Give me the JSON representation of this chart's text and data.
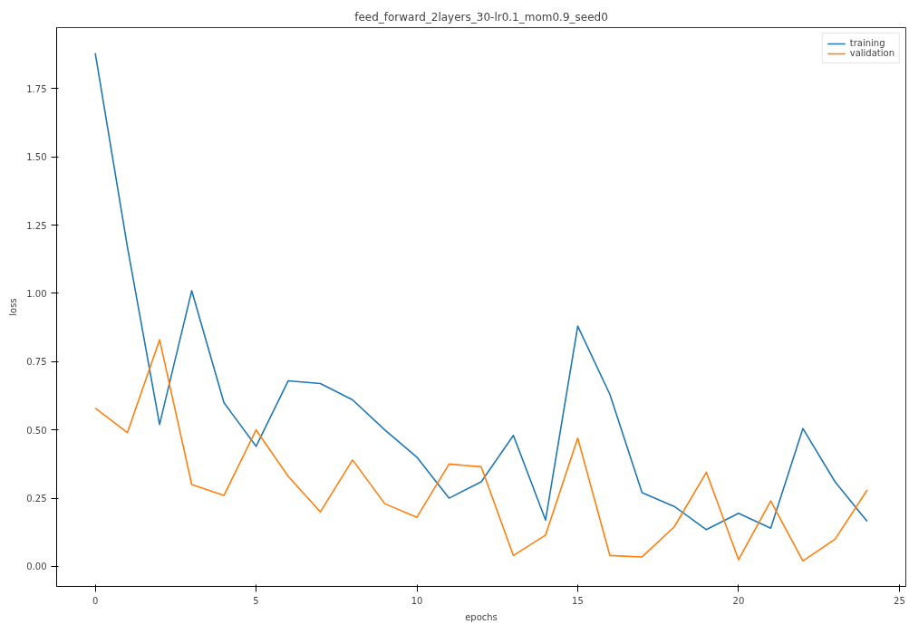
{
  "chart_data": {
    "type": "line",
    "title": "feed_forward_2layers_30-lr0.1_mom0.9_seed0",
    "xlabel": "epochs",
    "ylabel": "loss",
    "x": [
      0,
      1,
      2,
      3,
      4,
      5,
      6,
      7,
      8,
      9,
      10,
      11,
      12,
      13,
      14,
      15,
      16,
      17,
      18,
      19,
      20,
      21,
      22,
      23,
      24
    ],
    "series": [
      {
        "name": "training",
        "color": "#1f77b4",
        "values": [
          1.88,
          1.17,
          0.52,
          1.01,
          0.6,
          0.44,
          0.68,
          0.67,
          0.61,
          0.5,
          0.4,
          0.25,
          0.31,
          0.48,
          0.17,
          0.88,
          0.63,
          0.27,
          0.22,
          0.135,
          0.195,
          0.14,
          0.505,
          0.31,
          0.165
        ]
      },
      {
        "name": "validation",
        "color": "#ff7f0e",
        "values": [
          0.58,
          0.49,
          0.83,
          0.3,
          0.26,
          0.5,
          0.33,
          0.2,
          0.39,
          0.23,
          0.18,
          0.375,
          0.365,
          0.04,
          0.115,
          0.47,
          0.04,
          0.035,
          0.145,
          0.345,
          0.025,
          0.24,
          0.02,
          0.1,
          0.28
        ]
      }
    ],
    "xlim": [
      -1.2,
      25.2
    ],
    "ylim": [
      -0.073,
      1.973
    ],
    "xticks": [
      0,
      5,
      10,
      15,
      20,
      25
    ],
    "yticks": [
      {
        "value": 0,
        "label": "0.00"
      },
      {
        "value": 0.25,
        "label": "0.25"
      },
      {
        "value": 0.5,
        "label": "0.50"
      },
      {
        "value": 0.75,
        "label": "0.75"
      },
      {
        "value": 1.0,
        "label": "1.00"
      },
      {
        "value": 1.25,
        "label": "1.25"
      },
      {
        "value": 1.5,
        "label": "1.50"
      },
      {
        "value": 1.75,
        "label": "1.75"
      }
    ],
    "legend": "top right",
    "grid": false
  }
}
